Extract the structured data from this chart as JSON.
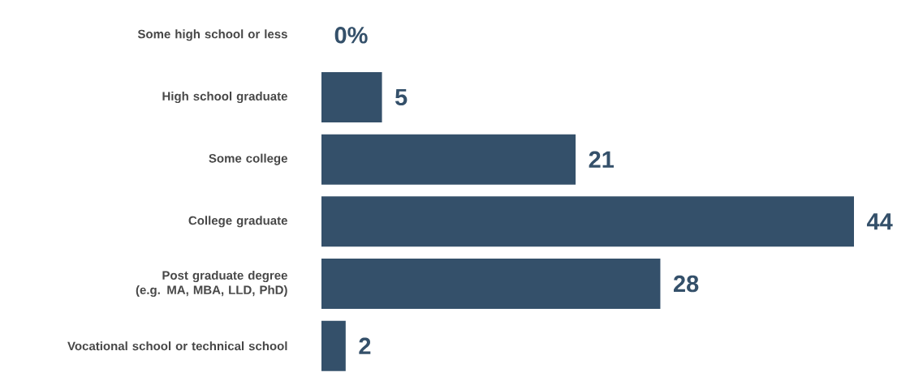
{
  "chart_data": {
    "type": "bar",
    "orientation": "horizontal",
    "categories": [
      "Some high school or less",
      "High school graduate",
      "Some college",
      "College graduate",
      "Post graduate degree (e.g. MA, MBA, LLD, PhD)",
      "Vocational school or technical school"
    ],
    "values": [
      0,
      5,
      21,
      44,
      28,
      2
    ],
    "value_labels": [
      "0%",
      "5",
      "21",
      "44",
      "28",
      "2"
    ],
    "color": "#34506a"
  }
}
